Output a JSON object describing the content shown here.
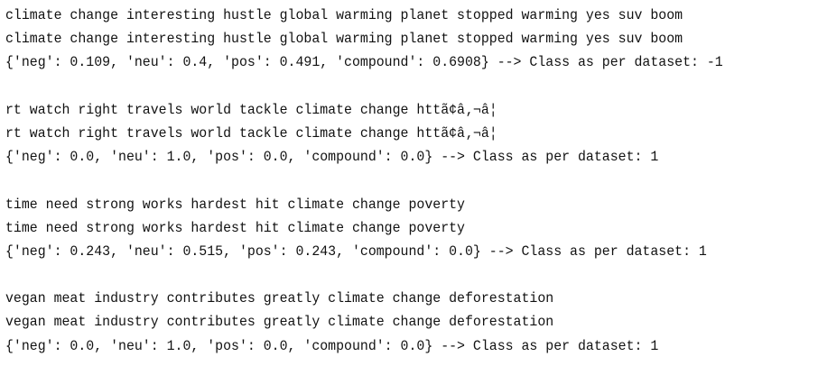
{
  "blocks": [
    {
      "text1": "climate change interesting hustle global warming planet stopped warming yes suv boom",
      "text2": "climate change interesting hustle global warming planet stopped warming yes suv boom",
      "result": "{'neg': 0.109, 'neu': 0.4, 'pos': 0.491, 'compound': 0.6908} --> Class as per dataset: -1"
    },
    {
      "text1": "rt watch right travels world tackle climate change httã¢â‚¬â¦",
      "text2": "rt watch right travels world tackle climate change httã¢â‚¬â¦",
      "result": "{'neg': 0.0, 'neu': 1.0, 'pos': 0.0, 'compound': 0.0} --> Class as per dataset: 1"
    },
    {
      "text1": "time need strong works hardest hit climate change poverty",
      "text2": "time need strong works hardest hit climate change poverty",
      "result": "{'neg': 0.243, 'neu': 0.515, 'pos': 0.243, 'compound': 0.0} --> Class as per dataset: 1"
    },
    {
      "text1": "vegan meat industry contributes greatly climate change deforestation",
      "text2": "vegan meat industry contributes greatly climate change deforestation",
      "result": "{'neg': 0.0, 'neu': 1.0, 'pos': 0.0, 'compound': 0.0} --> Class as per dataset: 1"
    }
  ]
}
